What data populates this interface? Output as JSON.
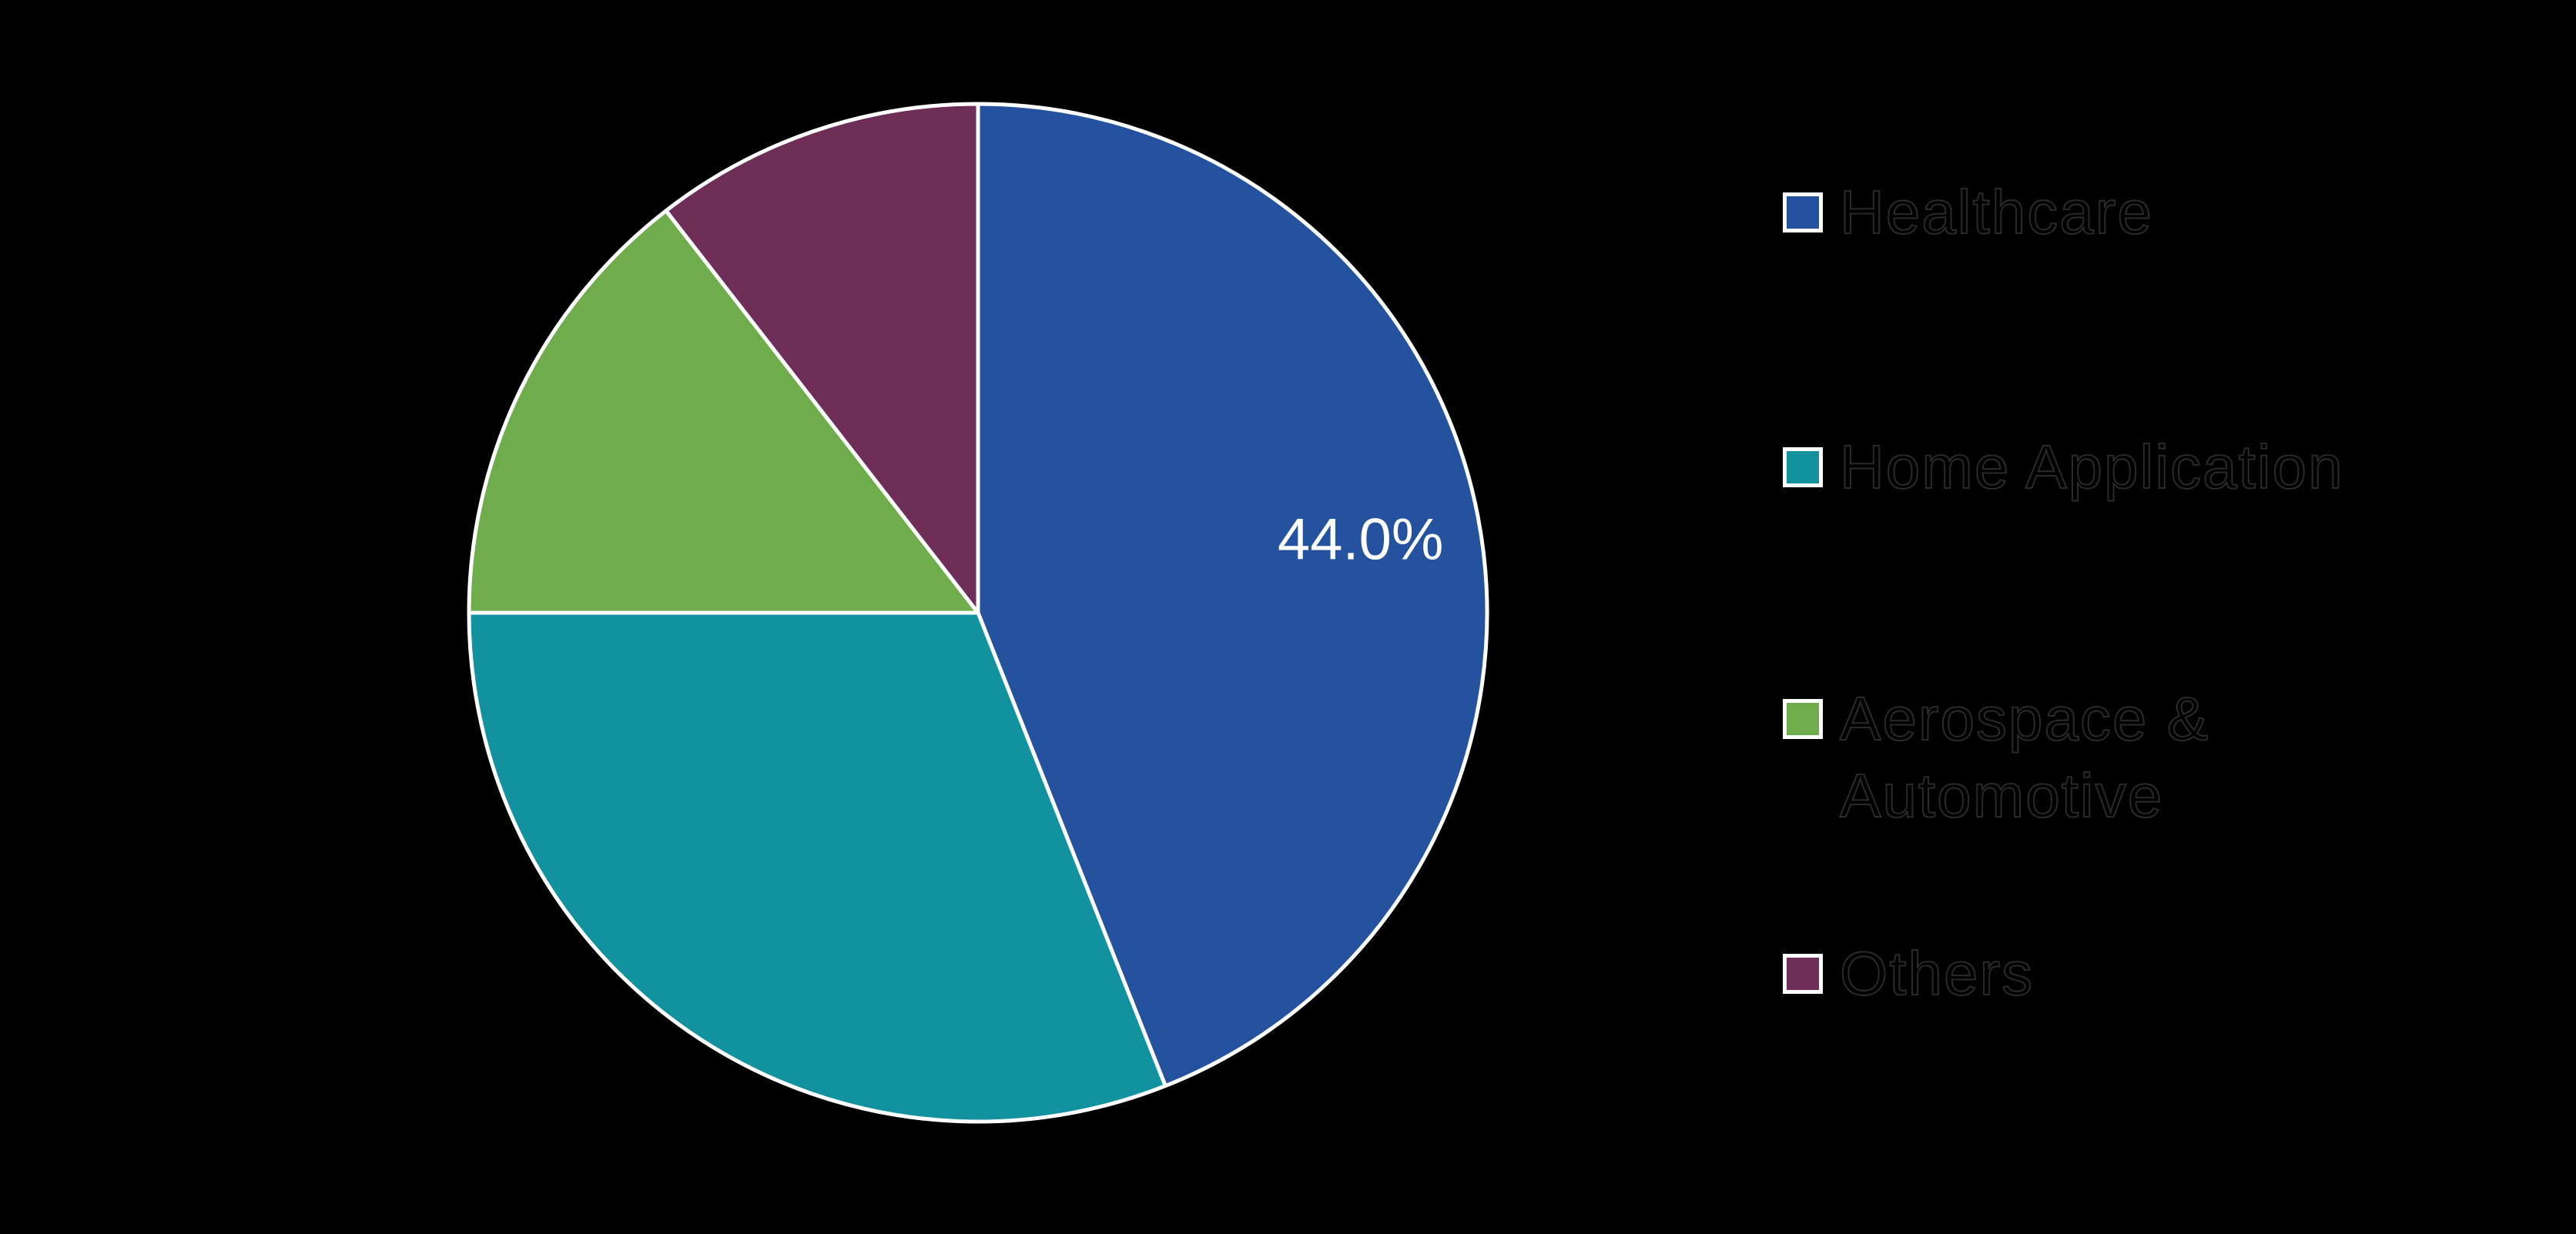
{
  "background_color": "#000000",
  "chart_data": {
    "type": "pie",
    "title": "",
    "start_angle_deg": 90,
    "direction": "clockwise",
    "legend_position": "right",
    "wedge_edge_color": "#ffffff",
    "percent_label_color": "#ffffff",
    "visible_percent_labels": [
      "44.0%"
    ],
    "slices": [
      {
        "label": "Healthcare",
        "value": 44.0,
        "color": "#24529E",
        "percent_label": "44.0%"
      },
      {
        "label": "Home Application",
        "value": 31.0,
        "color": "#12929F",
        "percent_label": ""
      },
      {
        "label": "Aerospace &\nAutomotive",
        "value": 14.5,
        "color": "#6FAC4B",
        "percent_label": ""
      },
      {
        "label": "Others",
        "value": 10.5,
        "color": "#6E2E57",
        "percent_label": ""
      }
    ]
  }
}
